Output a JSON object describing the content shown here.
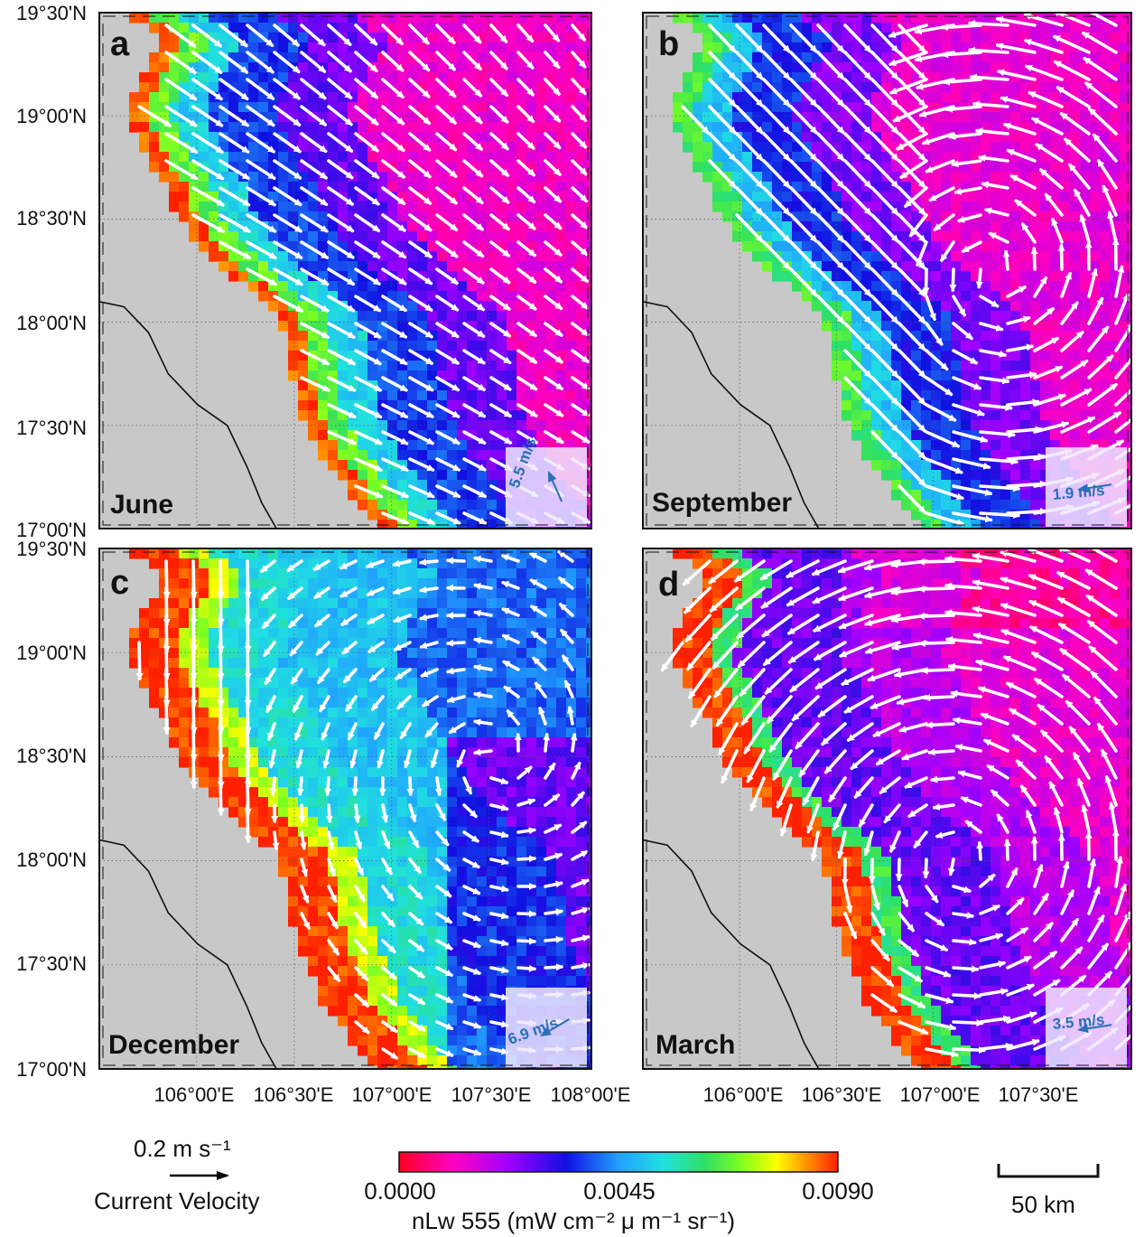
{
  "figure": {
    "lat_labels": [
      "19°30'N",
      "19°00'N",
      "18°30'N",
      "18°00'N",
      "17°30'N",
      "17°00'N"
    ],
    "lon_labels_left": [
      "106°00'E",
      "106°30'E",
      "107°00'E",
      "107°30'E",
      "108°00'E"
    ],
    "lon_labels_right": [
      "106°00'E",
      "106°30'E",
      "107°00'E",
      "107°30'E"
    ]
  },
  "panels": [
    {
      "letter": "a",
      "month": "June",
      "wind_speed": "5.5 m/s",
      "wind_dir": "northeast",
      "flow": "southeastward",
      "coast_band": "red-green",
      "offshore_color": "#e020e0"
    },
    {
      "letter": "b",
      "month": "September",
      "wind_speed": "1.9 m/s",
      "wind_dir": "west",
      "flow": "cyclonic-eddy",
      "coast_band": "green-blue",
      "offshore_color": "#e020e0"
    },
    {
      "letter": "c",
      "month": "December",
      "wind_speed": "6.9 m/s",
      "wind_dir": "southwest",
      "flow": "southward-coastal",
      "coast_band": "red",
      "offshore_color": "#2fd0e0"
    },
    {
      "letter": "d",
      "month": "March",
      "wind_speed": "3.5 m/s",
      "wind_dir": "west",
      "flow": "cyclonic-eddy",
      "coast_band": "red",
      "offshore_color": "#c020e0"
    }
  ],
  "legend": {
    "velocity_value": "0.2 m s⁻¹",
    "velocity_label": "Current Velocity",
    "colorbar_ticks": [
      "0.0000",
      "0.0045",
      "0.0090"
    ],
    "colorbar_label": "nLw 555 (mW cm⁻² μ m⁻¹ sr⁻¹)",
    "scale_bar": "50 km"
  },
  "colors": {
    "land": "#c8c8c8",
    "arrow": "#ffffff",
    "wind_text": "#2a6fb5"
  }
}
